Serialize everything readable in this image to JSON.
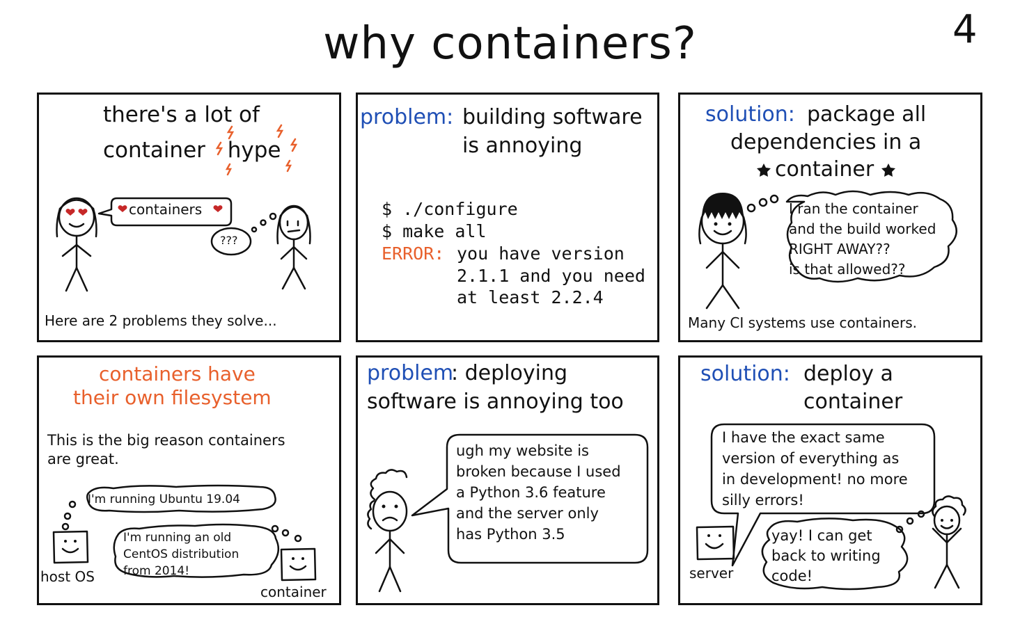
{
  "title": "why containers?",
  "page_number": "4",
  "panels": {
    "hype": {
      "heading_line1": "there's a lot of",
      "heading_line2": "container hype",
      "bubble": "containers",
      "thought": "???",
      "footer": "Here are 2 problems they solve..."
    },
    "problem_build": {
      "label": "problem:",
      "heading_line1": "building software",
      "heading_line2": "is annoying",
      "cmd1": "$ ./configure",
      "cmd2": "$ make all",
      "error_label": "ERROR:",
      "error_line1": "you have version",
      "error_line2": "2.1.1 and you need",
      "error_line3": "at least 2.2.4"
    },
    "solution_package": {
      "label": "solution:",
      "heading_line1": "package all",
      "heading_line2": "dependencies in a",
      "heading_line3": "container",
      "thought_line1": "I ran the container",
      "thought_line2": "and the build worked",
      "thought_line3": "RIGHT AWAY??",
      "thought_line4": "is that allowed??",
      "footer": "Many CI systems use containers."
    },
    "filesystem": {
      "heading_line1": "containers have",
      "heading_line2": "their own filesystem",
      "body_line1": "This is the big reason containers",
      "body_line2": "are great.",
      "host_thought": "I'm running Ubuntu 19.04",
      "container_thought_line1": "I'm running an old",
      "container_thought_line2": "CentOS distribution",
      "container_thought_line3": "from 2014!",
      "host_label": "host OS",
      "container_label": "container"
    },
    "problem_deploy": {
      "label": "problem",
      "heading_line1_rest": ": deploying",
      "heading_line2": "software is annoying too",
      "speech_line1": "ugh my website is",
      "speech_line2": "broken because I used",
      "speech_line3": "a Python 3.6 feature",
      "speech_line4": "and the server only",
      "speech_line5": "has Python 3.5"
    },
    "solution_deploy": {
      "label": "solution:",
      "heading_line1": "deploy a",
      "heading_line2": "container",
      "speech_line1": "I have the exact same",
      "speech_line2": "version of everything as",
      "speech_line3": "in development! no more",
      "speech_line4": "silly errors!",
      "thought_line1": "yay! I can get",
      "thought_line2": "back to writing",
      "thought_line3": "code!",
      "server_label": "server"
    }
  },
  "colors": {
    "accent_blue": "#1f4fb5",
    "accent_orange": "#e8602c",
    "heart_red": "#c62828"
  }
}
